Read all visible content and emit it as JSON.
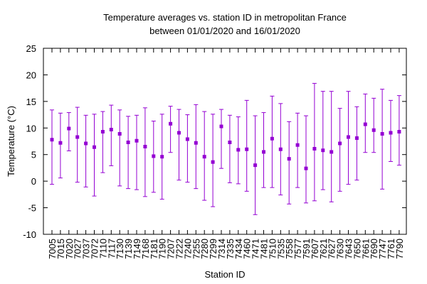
{
  "chart_data": {
    "type": "scatter",
    "title_lines": [
      "Temperature averages vs. station ID in metropolitan France",
      "between 01/01/2020 and 16/01/2020"
    ],
    "xlabel": "Station ID",
    "ylabel": "Temperature (°C)",
    "ylim": [
      -10,
      25
    ],
    "yticks": [
      -10,
      -5,
      0,
      5,
      10,
      15,
      20,
      25
    ],
    "grid": false,
    "series_color": "#9400d3",
    "categories": [
      "7005",
      "7015",
      "7020",
      "7027",
      "7037",
      "7072",
      "7110",
      "7117",
      "7130",
      "7139",
      "7149",
      "7168",
      "7181",
      "7190",
      "7207",
      "7222",
      "7240",
      "7255",
      "7280",
      "7299",
      "7314",
      "7335",
      "7434",
      "7460",
      "7471",
      "7481",
      "7510",
      "7535",
      "7558",
      "7577",
      "7591",
      "7607",
      "7621",
      "7627",
      "7630",
      "7643",
      "7650",
      "7661",
      "7690",
      "7747",
      "7761",
      "7790"
    ],
    "mean": [
      7.8,
      7.2,
      9.9,
      8.3,
      7.1,
      6.4,
      9.3,
      9.7,
      8.9,
      7.3,
      7.6,
      6.5,
      4.7,
      4.6,
      10.8,
      9.1,
      7.9,
      7.2,
      4.6,
      3.6,
      10.3,
      7.3,
      5.9,
      6.0,
      3.0,
      5.5,
      8.0,
      6.0,
      4.2,
      6.8,
      2.4,
      6.1,
      5.8,
      5.5,
      7.1,
      8.3,
      8.1,
      10.7,
      9.6,
      8.9,
      9.1,
      9.3
    ],
    "low": [
      -0.6,
      0.6,
      5.7,
      -0.2,
      -1.1,
      -2.8,
      1.6,
      2.9,
      -0.9,
      -1.4,
      -1.6,
      -2.9,
      -2.1,
      -3.4,
      5.4,
      0.2,
      -0.2,
      -1.4,
      -3.6,
      -4.8,
      2.4,
      -0.3,
      -0.5,
      -1.9,
      -6.3,
      -1.2,
      -1.2,
      -2.6,
      -4.3,
      -1.2,
      -4.1,
      -3.7,
      -1.6,
      -3.9,
      -1.9,
      -0.6,
      0.2,
      5.4,
      5.4,
      -1.5,
      3.7,
      3.0
    ],
    "high": [
      13.4,
      12.8,
      12.9,
      13.9,
      12.4,
      12.6,
      13.1,
      14.3,
      13.4,
      12.2,
      12.4,
      13.8,
      11.3,
      12.6,
      14.1,
      13.5,
      12.5,
      14.4,
      13.1,
      12.6,
      13.5,
      12.4,
      12.1,
      15.2,
      12.3,
      12.9,
      16.0,
      14.6,
      11.2,
      12.8,
      12.3,
      18.4,
      16.9,
      16.9,
      13.7,
      16.9,
      14.0,
      16.4,
      15.6,
      17.3,
      15.2,
      16.1
    ]
  }
}
